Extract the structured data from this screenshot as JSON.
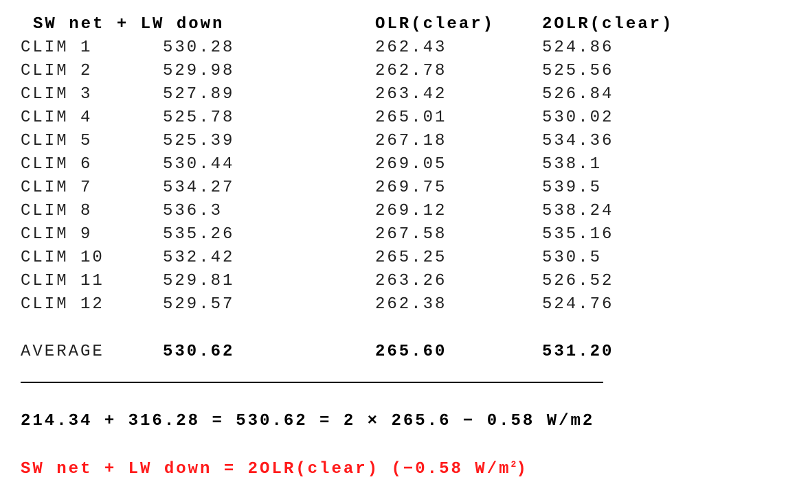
{
  "table": {
    "header": [
      "SW net + LW down",
      "OLR(clear)",
      "2OLR(clear)"
    ],
    "rows": [
      [
        "CLIM 1",
        "530.28",
        "262.43",
        "524.86"
      ],
      [
        "CLIM 2",
        "529.98",
        "262.78",
        "525.56"
      ],
      [
        "CLIM 3",
        "527.89",
        "263.42",
        "526.84"
      ],
      [
        "CLIM 4",
        "525.78",
        "265.01",
        "530.02"
      ],
      [
        "CLIM 5",
        "525.39",
        "267.18",
        "534.36"
      ],
      [
        "CLIM 6",
        "530.44",
        "269.05",
        "538.1"
      ],
      [
        "CLIM 7",
        "534.27",
        "269.75",
        "539.5"
      ],
      [
        "CLIM 8",
        "536.3",
        "269.12",
        "538.24"
      ],
      [
        "CLIM 9",
        "535.26",
        "267.58",
        "535.16"
      ],
      [
        "CLIM 10",
        "532.42",
        "265.25",
        "530.5"
      ],
      [
        "CLIM 11",
        "529.81",
        "263.26",
        "526.52"
      ],
      [
        "CLIM 12",
        "529.57",
        "262.38",
        "524.76"
      ]
    ],
    "average": [
      "AVERAGE",
      "530.62",
      "265.60",
      "531.20"
    ]
  },
  "equation": "214.34 + 316.28 = 530.62 = 2 × 265.6 − 0.58 W/m2",
  "conclusion": {
    "text": "SW net + LW down = 2OLR(clear) (−0.58 W/m",
    "superscript": "2",
    "end": ")"
  }
}
